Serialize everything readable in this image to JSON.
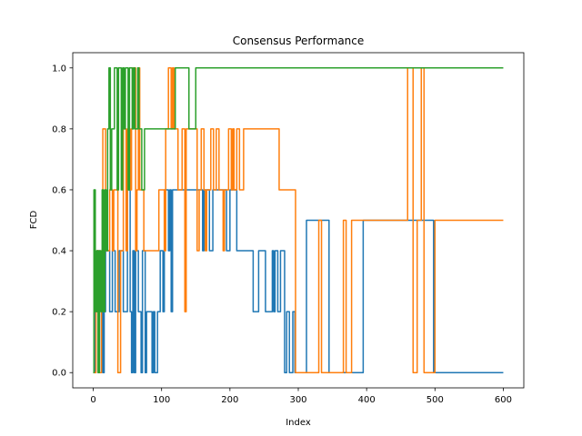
{
  "chart_data": {
    "type": "line",
    "title": "Consensus Performance",
    "xlabel": "Index",
    "ylabel": "FCD",
    "xlim": [
      -30,
      630
    ],
    "ylim": [
      -0.05,
      1.05
    ],
    "xticks": [
      0,
      100,
      200,
      300,
      400,
      500,
      600
    ],
    "yticks": [
      0.0,
      0.2,
      0.4,
      0.6,
      0.8,
      1.0
    ],
    "xtick_labels": [
      "0",
      "100",
      "200",
      "300",
      "400",
      "500",
      "600"
    ],
    "ytick_labels": [
      "0.0",
      "0.2",
      "0.4",
      "0.6",
      "0.8",
      "1.0"
    ],
    "grid": false,
    "legend": "none",
    "series": [
      {
        "color": "#1f77b4",
        "points": [
          [
            0,
            0.0
          ],
          [
            3,
            0.0
          ],
          [
            3,
            0.2
          ],
          [
            6,
            0.2
          ],
          [
            6,
            0.4
          ],
          [
            9,
            0.4
          ],
          [
            9,
            0.0
          ],
          [
            12,
            0.0
          ],
          [
            12,
            0.2
          ],
          [
            14,
            0.2
          ],
          [
            14,
            0.0
          ],
          [
            16,
            0.0
          ],
          [
            16,
            0.2
          ],
          [
            18,
            0.2
          ],
          [
            18,
            0.4
          ],
          [
            24,
            0.4
          ],
          [
            24,
            0.2
          ],
          [
            28,
            0.2
          ],
          [
            28,
            0.4
          ],
          [
            32,
            0.4
          ],
          [
            32,
            0.2
          ],
          [
            38,
            0.2
          ],
          [
            38,
            0.4
          ],
          [
            44,
            0.4
          ],
          [
            44,
            0.2
          ],
          [
            50,
            0.2
          ],
          [
            50,
            0.6
          ],
          [
            54,
            0.6
          ],
          [
            54,
            0.2
          ],
          [
            56,
            0.2
          ],
          [
            56,
            0.0
          ],
          [
            58,
            0.0
          ],
          [
            58,
            0.4
          ],
          [
            60,
            0.4
          ],
          [
            60,
            0.0
          ],
          [
            62,
            0.0
          ],
          [
            62,
            0.4
          ],
          [
            66,
            0.4
          ],
          [
            66,
            0.2
          ],
          [
            70,
            0.2
          ],
          [
            70,
            0.0
          ],
          [
            72,
            0.0
          ],
          [
            72,
            0.4
          ],
          [
            76,
            0.4
          ],
          [
            76,
            0.0
          ],
          [
            78,
            0.0
          ],
          [
            78,
            0.2
          ],
          [
            86,
            0.2
          ],
          [
            86,
            0.0
          ],
          [
            88,
            0.0
          ],
          [
            88,
            0.2
          ],
          [
            90,
            0.2
          ],
          [
            90,
            0.0
          ],
          [
            94,
            0.0
          ],
          [
            94,
            0.2
          ],
          [
            98,
            0.2
          ],
          [
            98,
            0.4
          ],
          [
            102,
            0.4
          ],
          [
            102,
            0.2
          ],
          [
            104,
            0.2
          ],
          [
            104,
            0.6
          ],
          [
            110,
            0.6
          ],
          [
            110,
            0.4
          ],
          [
            112,
            0.4
          ],
          [
            112,
            0.6
          ],
          [
            114,
            0.6
          ],
          [
            114,
            0.2
          ],
          [
            116,
            0.2
          ],
          [
            116,
            0.6
          ],
          [
            160,
            0.6
          ],
          [
            160,
            0.4
          ],
          [
            162,
            0.4
          ],
          [
            162,
            0.6
          ],
          [
            170,
            0.6
          ],
          [
            170,
            0.4
          ],
          [
            175,
            0.4
          ],
          [
            175,
            0.6
          ],
          [
            195,
            0.6
          ],
          [
            195,
            0.4
          ],
          [
            200,
            0.4
          ],
          [
            200,
            0.6
          ],
          [
            210,
            0.6
          ],
          [
            210,
            0.4
          ],
          [
            234,
            0.4
          ],
          [
            234,
            0.2
          ],
          [
            242,
            0.2
          ],
          [
            242,
            0.4
          ],
          [
            252,
            0.4
          ],
          [
            252,
            0.2
          ],
          [
            262,
            0.2
          ],
          [
            262,
            0.4
          ],
          [
            264,
            0.4
          ],
          [
            264,
            0.2
          ],
          [
            266,
            0.2
          ],
          [
            266,
            0.4
          ],
          [
            270,
            0.4
          ],
          [
            270,
            0.2
          ],
          [
            274,
            0.2
          ],
          [
            274,
            0.4
          ],
          [
            280,
            0.4
          ],
          [
            280,
            0.0
          ],
          [
            283,
            0.0
          ],
          [
            283,
            0.2
          ],
          [
            287,
            0.2
          ],
          [
            287,
            0.0
          ],
          [
            292,
            0.0
          ],
          [
            292,
            0.2
          ],
          [
            295,
            0.2
          ],
          [
            295,
            0.0
          ],
          [
            312,
            0.0
          ],
          [
            312,
            0.5
          ],
          [
            345,
            0.5
          ],
          [
            345,
            0.0
          ],
          [
            395,
            0.0
          ],
          [
            395,
            0.5
          ],
          [
            498,
            0.5
          ],
          [
            498,
            0.0
          ],
          [
            600,
            0.0
          ]
        ]
      },
      {
        "color": "#ff7f0e",
        "points": [
          [
            0,
            0.0
          ],
          [
            4,
            0.0
          ],
          [
            4,
            0.2
          ],
          [
            6,
            0.2
          ],
          [
            6,
            0.4
          ],
          [
            8,
            0.4
          ],
          [
            8,
            0.0
          ],
          [
            12,
            0.0
          ],
          [
            12,
            0.4
          ],
          [
            14,
            0.4
          ],
          [
            14,
            0.8
          ],
          [
            18,
            0.8
          ],
          [
            18,
            0.4
          ],
          [
            24,
            0.4
          ],
          [
            24,
            0.6
          ],
          [
            28,
            0.6
          ],
          [
            28,
            0.4
          ],
          [
            30,
            0.4
          ],
          [
            30,
            0.6
          ],
          [
            36,
            0.6
          ],
          [
            36,
            0.0
          ],
          [
            40,
            0.0
          ],
          [
            40,
            0.4
          ],
          [
            44,
            0.4
          ],
          [
            44,
            0.8
          ],
          [
            48,
            0.8
          ],
          [
            48,
            0.4
          ],
          [
            50,
            0.4
          ],
          [
            50,
            0.8
          ],
          [
            54,
            0.8
          ],
          [
            54,
            0.6
          ],
          [
            56,
            0.6
          ],
          [
            56,
            0.8
          ],
          [
            58,
            0.8
          ],
          [
            58,
            1.0
          ],
          [
            62,
            1.0
          ],
          [
            62,
            0.4
          ],
          [
            64,
            0.4
          ],
          [
            64,
            0.6
          ],
          [
            66,
            0.6
          ],
          [
            66,
            1.0
          ],
          [
            68,
            1.0
          ],
          [
            68,
            0.6
          ],
          [
            74,
            0.6
          ],
          [
            74,
            0.4
          ],
          [
            96,
            0.4
          ],
          [
            96,
            0.6
          ],
          [
            104,
            0.6
          ],
          [
            104,
            0.4
          ],
          [
            106,
            0.4
          ],
          [
            106,
            0.8
          ],
          [
            110,
            0.8
          ],
          [
            110,
            1.0
          ],
          [
            114,
            1.0
          ],
          [
            114,
            0.8
          ],
          [
            116,
            0.8
          ],
          [
            116,
            1.0
          ],
          [
            118,
            1.0
          ],
          [
            118,
            0.8
          ],
          [
            124,
            0.8
          ],
          [
            124,
            0.6
          ],
          [
            130,
            0.6
          ],
          [
            130,
            0.8
          ],
          [
            134,
            0.8
          ],
          [
            134,
            0.2
          ],
          [
            136,
            0.2
          ],
          [
            136,
            0.8
          ],
          [
            152,
            0.8
          ],
          [
            152,
            0.4
          ],
          [
            155,
            0.4
          ],
          [
            155,
            0.6
          ],
          [
            158,
            0.6
          ],
          [
            158,
            0.8
          ],
          [
            162,
            0.8
          ],
          [
            162,
            0.6
          ],
          [
            164,
            0.6
          ],
          [
            164,
            0.4
          ],
          [
            166,
            0.4
          ],
          [
            166,
            0.6
          ],
          [
            172,
            0.6
          ],
          [
            172,
            0.8
          ],
          [
            176,
            0.8
          ],
          [
            176,
            0.6
          ],
          [
            180,
            0.6
          ],
          [
            180,
            0.8
          ],
          [
            184,
            0.8
          ],
          [
            184,
            0.6
          ],
          [
            190,
            0.6
          ],
          [
            190,
            0.4
          ],
          [
            192,
            0.4
          ],
          [
            192,
            0.6
          ],
          [
            198,
            0.6
          ],
          [
            198,
            0.8
          ],
          [
            202,
            0.8
          ],
          [
            202,
            0.6
          ],
          [
            204,
            0.6
          ],
          [
            204,
            0.8
          ],
          [
            206,
            0.8
          ],
          [
            206,
            0.6
          ],
          [
            210,
            0.6
          ],
          [
            210,
            0.8
          ],
          [
            214,
            0.8
          ],
          [
            214,
            0.6
          ],
          [
            220,
            0.6
          ],
          [
            220,
            0.8
          ],
          [
            272,
            0.8
          ],
          [
            272,
            0.6
          ],
          [
            296,
            0.6
          ],
          [
            296,
            0.0
          ],
          [
            330,
            0.0
          ],
          [
            330,
            0.5
          ],
          [
            334,
            0.5
          ],
          [
            334,
            0.0
          ],
          [
            366,
            0.0
          ],
          [
            366,
            0.5
          ],
          [
            370,
            0.5
          ],
          [
            370,
            0.0
          ],
          [
            378,
            0.0
          ],
          [
            378,
            0.5
          ],
          [
            460,
            0.5
          ],
          [
            460,
            1.0
          ],
          [
            468,
            1.0
          ],
          [
            468,
            0.0
          ],
          [
            474,
            0.0
          ],
          [
            474,
            0.5
          ],
          [
            480,
            0.5
          ],
          [
            480,
            1.0
          ],
          [
            484,
            1.0
          ],
          [
            484,
            0.0
          ],
          [
            500,
            0.0
          ],
          [
            500,
            0.5
          ],
          [
            600,
            0.5
          ]
        ]
      },
      {
        "color": "#2ca02c",
        "points": [
          [
            0,
            0.0
          ],
          [
            1,
            0.0
          ],
          [
            1,
            0.6
          ],
          [
            3,
            0.6
          ],
          [
            3,
            0.2
          ],
          [
            5,
            0.2
          ],
          [
            5,
            0.4
          ],
          [
            7,
            0.4
          ],
          [
            7,
            0.0
          ],
          [
            9,
            0.0
          ],
          [
            9,
            0.4
          ],
          [
            11,
            0.4
          ],
          [
            11,
            0.2
          ],
          [
            13,
            0.2
          ],
          [
            13,
            0.6
          ],
          [
            15,
            0.6
          ],
          [
            15,
            0.2
          ],
          [
            17,
            0.2
          ],
          [
            17,
            0.6
          ],
          [
            19,
            0.6
          ],
          [
            19,
            0.4
          ],
          [
            21,
            0.4
          ],
          [
            21,
            0.8
          ],
          [
            23,
            0.8
          ],
          [
            23,
            1.0
          ],
          [
            25,
            1.0
          ],
          [
            25,
            0.6
          ],
          [
            27,
            0.6
          ],
          [
            27,
            0.8
          ],
          [
            31,
            0.8
          ],
          [
            31,
            1.0
          ],
          [
            35,
            1.0
          ],
          [
            35,
            0.6
          ],
          [
            37,
            0.6
          ],
          [
            37,
            1.0
          ],
          [
            41,
            1.0
          ],
          [
            41,
            0.6
          ],
          [
            43,
            0.6
          ],
          [
            43,
            1.0
          ],
          [
            45,
            1.0
          ],
          [
            45,
            0.8
          ],
          [
            47,
            0.8
          ],
          [
            47,
            1.0
          ],
          [
            51,
            1.0
          ],
          [
            51,
            0.6
          ],
          [
            53,
            0.6
          ],
          [
            53,
            1.0
          ],
          [
            57,
            1.0
          ],
          [
            57,
            0.8
          ],
          [
            59,
            0.8
          ],
          [
            59,
            1.0
          ],
          [
            61,
            1.0
          ],
          [
            61,
            0.8
          ],
          [
            65,
            0.8
          ],
          [
            65,
            1.0
          ],
          [
            67,
            1.0
          ],
          [
            67,
            0.8
          ],
          [
            71,
            0.8
          ],
          [
            71,
            0.6
          ],
          [
            75,
            0.6
          ],
          [
            75,
            0.8
          ],
          [
            120,
            0.8
          ],
          [
            120,
            1.0
          ],
          [
            140,
            1.0
          ],
          [
            140,
            0.8
          ],
          [
            150,
            0.8
          ],
          [
            150,
            1.0
          ],
          [
            600,
            1.0
          ]
        ]
      }
    ]
  }
}
